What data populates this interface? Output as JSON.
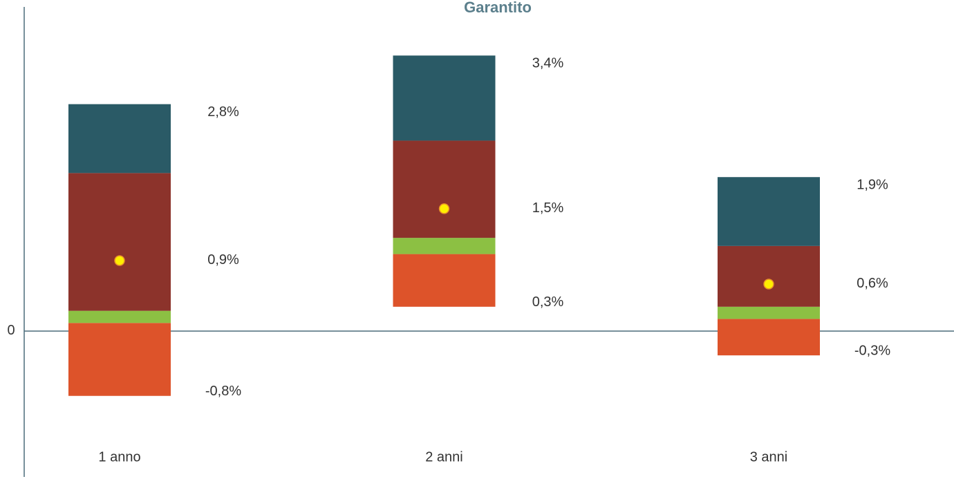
{
  "chart_data": {
    "type": "floating_stacked_bar",
    "title": "Garantito",
    "categories": [
      "1 anno",
      "2 anni",
      "3 anni"
    ],
    "base": [
      -0.8,
      0.3,
      -0.3
    ],
    "series": [
      {
        "color": "#dd532a",
        "values": [
          0.9,
          0.65,
          0.45
        ]
      },
      {
        "color": "#8cc043",
        "values": [
          0.15,
          0.2,
          0.15
        ]
      },
      {
        "color": "#8c332b",
        "values": [
          1.7,
          1.2,
          0.75
        ]
      },
      {
        "color": "#2a5a66",
        "values": [
          0.85,
          1.05,
          0.85
        ]
      }
    ],
    "min": {
      "values": [
        -0.8,
        0.3,
        -0.3
      ],
      "value_labels": [
        "-0,8%",
        "0,3%",
        "-0,3%"
      ]
    },
    "median": {
      "values": [
        0.87,
        1.51,
        0.58
      ],
      "value_labels": [
        "0,9%",
        "1,5%",
        "0,6%"
      ],
      "color": "#ffee00"
    },
    "max": {
      "values": [
        2.8,
        3.4,
        1.9
      ],
      "value_labels": [
        "2,8%",
        "3,4%",
        "1,9%"
      ]
    },
    "ylim": [
      -1.8,
      4.0
    ],
    "yticks": [
      0
    ]
  }
}
